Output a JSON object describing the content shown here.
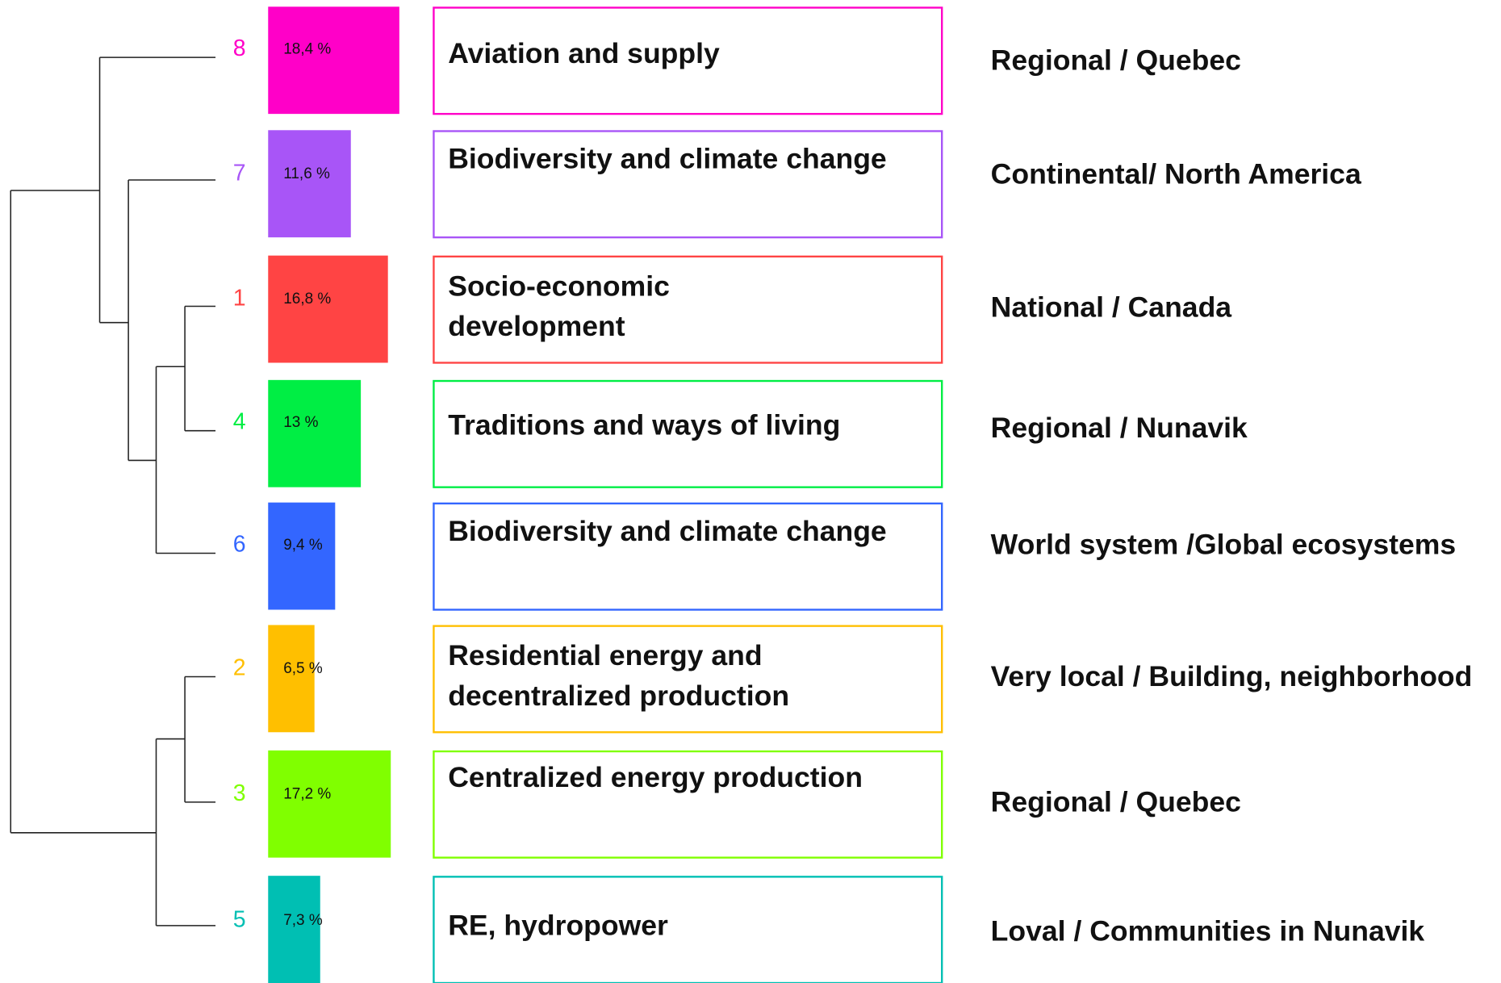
{
  "rows": [
    {
      "cluster": "8",
      "share": 18.4,
      "share_label": "18,4 %",
      "color": "#ff00c8",
      "theme_lines": [
        "Aviation and supply"
      ],
      "scale": "Regional / Quebec"
    },
    {
      "cluster": "7",
      "share": 11.6,
      "share_label": "11,6 %",
      "color": "#a855f7",
      "theme_lines": [
        "Biodiversity and climate change"
      ],
      "scale": "Continental/ North America"
    },
    {
      "cluster": "1",
      "share": 16.8,
      "share_label": "16,8 %",
      "color": "#ff4444",
      "theme_lines": [
        "Socio-economic",
        "development"
      ],
      "scale": "National / Canada"
    },
    {
      "cluster": "4",
      "share": 13,
      "share_label": "13 %",
      "color": "#00ee44",
      "theme_lines": [
        "Traditions and ways of living"
      ],
      "scale": "Regional / Nunavik"
    },
    {
      "cluster": "6",
      "share": 9.4,
      "share_label": "9,4 %",
      "color": "#3366ff",
      "theme_lines": [
        "Biodiversity and climate change"
      ],
      "scale": "World system /Global ecosystems"
    },
    {
      "cluster": "2",
      "share": 6.5,
      "share_label": "6,5 %",
      "color": "#ffbf00",
      "theme_lines": [
        "Residential energy and",
        "decentralized production"
      ],
      "scale": "Very local / Building, neighborhood"
    },
    {
      "cluster": "3",
      "share": 17.2,
      "share_label": "17,2 %",
      "color": "#80ff00",
      "theme_lines": [
        "Centralized energy production"
      ],
      "scale": "Regional / Quebec"
    },
    {
      "cluster": "5",
      "share": 7.3,
      "share_label": "7,3 %",
      "color": "#00bfb3",
      "theme_lines": [
        "RE, hydropower"
      ],
      "scale": "Loval / Communities in Nunavik"
    }
  ]
}
